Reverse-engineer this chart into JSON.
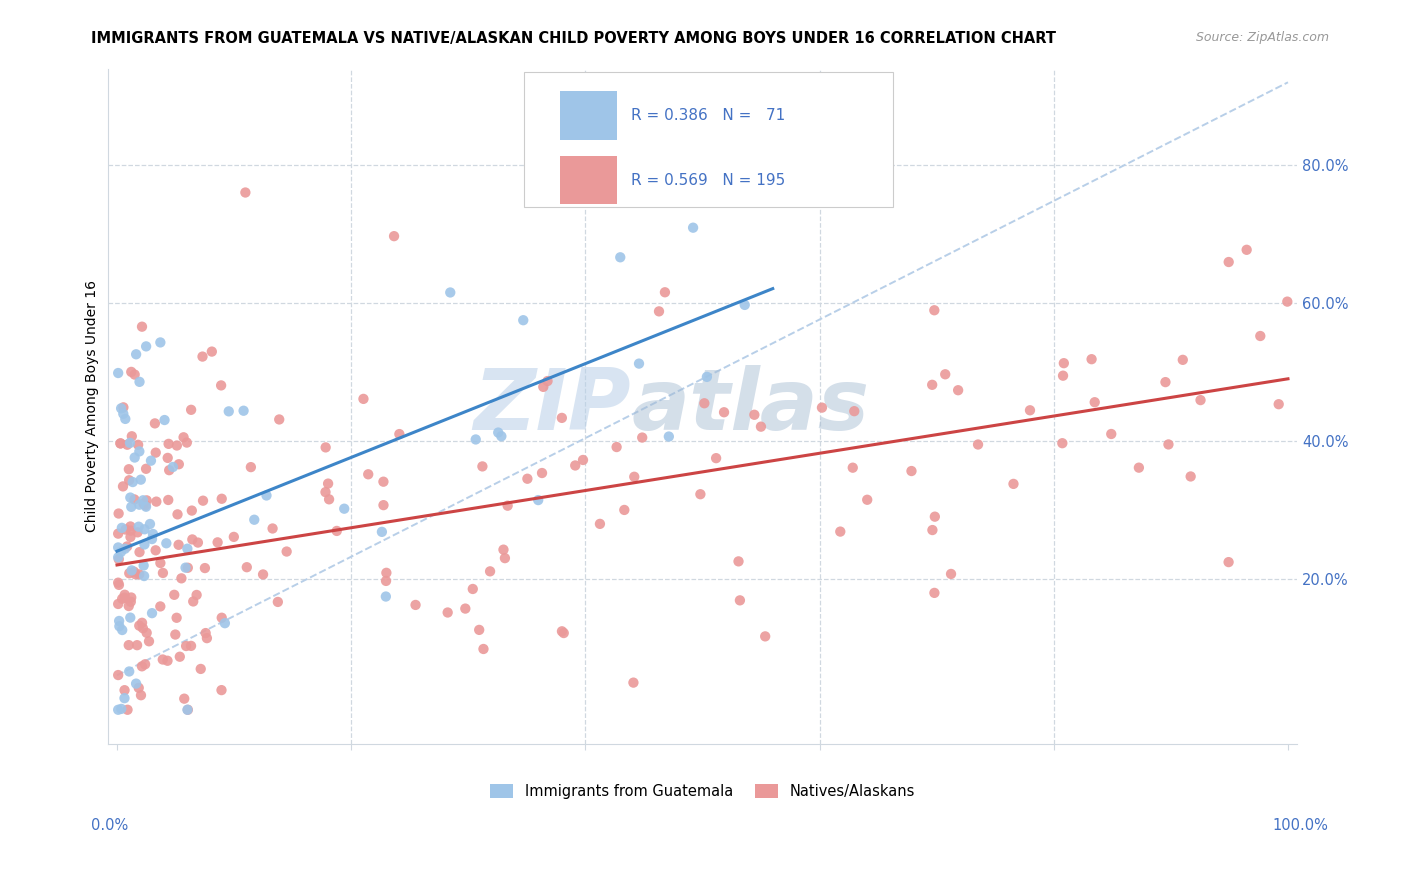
{
  "title": "IMMIGRANTS FROM GUATEMALA VS NATIVE/ALASKAN CHILD POVERTY AMONG BOYS UNDER 16 CORRELATION CHART",
  "source": "Source: ZipAtlas.com",
  "ylabel": "Child Poverty Among Boys Under 16",
  "legend_label_blue": "Immigrants from Guatemala",
  "legend_label_pink": "Natives/Alaskans",
  "R_blue": 0.386,
  "N_blue": 71,
  "R_pink": 0.569,
  "N_pink": 195,
  "blue_color": "#9fc5e8",
  "pink_color": "#ea9999",
  "blue_line_color": "#3d85c8",
  "pink_line_color": "#cc4444",
  "dashed_line_color": "#b8cfe8",
  "grid_color": "#d0d8e0",
  "axis_label_color": "#4472c4",
  "watermark_zip": "ZIP",
  "watermark_atlas": "atlas",
  "ytick_vals": [
    0.2,
    0.4,
    0.6,
    0.8
  ],
  "ytick_labels": [
    "20.0%",
    "40.0%",
    "60.0%",
    "80.0%"
  ],
  "blue_intercept": 0.24,
  "blue_slope": 0.68,
  "pink_intercept": 0.22,
  "pink_slope": 0.27
}
